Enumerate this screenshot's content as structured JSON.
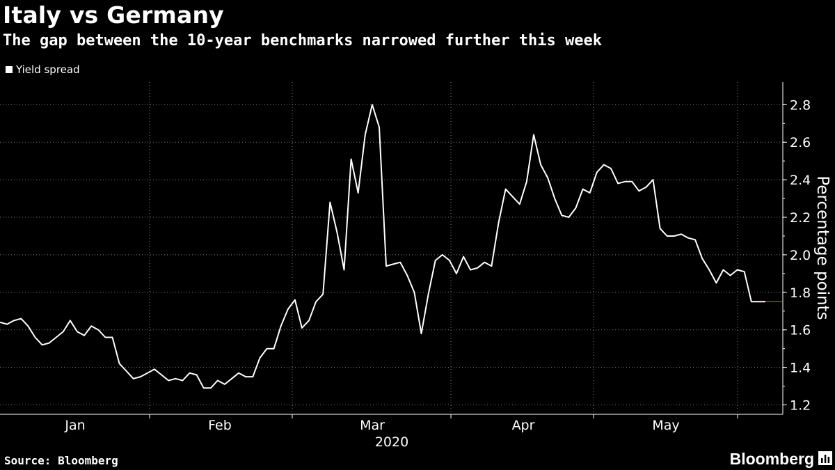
{
  "header": {
    "title": "Italy vs Germany",
    "subtitle": "The gap between the 10-year benchmarks narrowed further this week"
  },
  "legend": {
    "label": "Yield spread"
  },
  "footer": {
    "source": "Source: Bloomberg",
    "brand": "Bloomberg",
    "brand_icon": "bloomberg-chart-icon"
  },
  "colors": {
    "background": "#000000",
    "line": "#ffffff",
    "grid": "#808080",
    "last_marker": "#e05a4a"
  },
  "chart_data": {
    "type": "line",
    "title": "Italy vs Germany",
    "subtitle": "The gap between the 10-year benchmarks narrowed further this week",
    "xlabel": "2020",
    "ylabel": "Percentage points",
    "ylim": [
      1.15,
      2.92
    ],
    "yticks": [
      1.2,
      1.4,
      1.6,
      1.8,
      2.0,
      2.2,
      2.4,
      2.6,
      2.8
    ],
    "ytick_labels": [
      "1.2",
      "1.4",
      "1.6",
      "1.8",
      "2.0",
      "2.2",
      "2.4",
      "2.6",
      "2.8"
    ],
    "month_labels": [
      "Jan",
      "Feb",
      "Mar",
      "Apr",
      "May"
    ],
    "year_label": "2020",
    "grid": true,
    "legend_position": "top-left",
    "series": [
      {
        "name": "Yield spread",
        "values": [
          1.64,
          1.63,
          1.65,
          1.66,
          1.62,
          1.56,
          1.52,
          1.53,
          1.56,
          1.59,
          1.65,
          1.59,
          1.57,
          1.62,
          1.6,
          1.56,
          1.56,
          1.42,
          1.38,
          1.34,
          1.35,
          1.37,
          1.39,
          1.36,
          1.33,
          1.34,
          1.33,
          1.37,
          1.36,
          1.29,
          1.29,
          1.33,
          1.31,
          1.34,
          1.37,
          1.35,
          1.35,
          1.45,
          1.5,
          1.5,
          1.62,
          1.71,
          1.76,
          1.61,
          1.65,
          1.75,
          1.79,
          2.28,
          2.12,
          1.92,
          2.51,
          2.33,
          2.64,
          2.8,
          2.68,
          1.94,
          1.95,
          1.96,
          1.89,
          1.8,
          1.58,
          1.79,
          1.97,
          2.0,
          1.97,
          1.9,
          1.99,
          1.92,
          1.93,
          1.96,
          1.94,
          2.17,
          2.35,
          2.31,
          2.27,
          2.39,
          2.64,
          2.48,
          2.41,
          2.3,
          2.21,
          2.2,
          2.25,
          2.35,
          2.33,
          2.44,
          2.48,
          2.46,
          2.38,
          2.39,
          2.39,
          2.34,
          2.36,
          2.4,
          2.14,
          2.1,
          2.1,
          2.11,
          2.09,
          2.08,
          1.98,
          1.92,
          1.85,
          1.92,
          1.89,
          1.92,
          1.91,
          1.75,
          1.75,
          1.75
        ]
      }
    ]
  }
}
